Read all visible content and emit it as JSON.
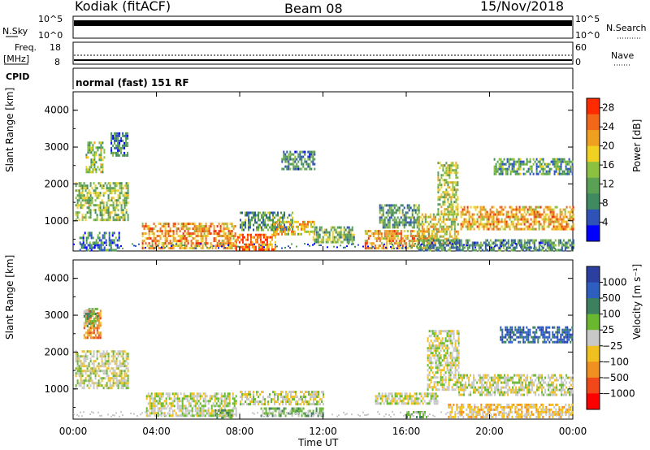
{
  "header": {
    "station": "Kodiak (fitACF)",
    "beam": "Beam 08",
    "date": "15/Nov/2018"
  },
  "top_panels": {
    "nsky_label": "N.Sky",
    "nsky_ticks": [
      "10^5",
      "10^0"
    ],
    "nsearch_label": "N.Search",
    "nsearch_ticks": [
      "10^5",
      "10^0"
    ],
    "freq_label_line1": "Freq.",
    "freq_label_line2": "[MHz]",
    "freq_ticks": [
      "18",
      "8"
    ],
    "nave_label": "Nave",
    "nave_ticks": [
      "60",
      "0"
    ],
    "cpid_label": "CPID",
    "cpid_value": "normal (fast) 151 RF"
  },
  "colors": {
    "power": [
      "#0000ff",
      "#2f52b8",
      "#3f8a5e",
      "#5aa055",
      "#8cc040",
      "#f0d020",
      "#f0a020",
      "#f06818",
      "#ff2a00"
    ],
    "velocity": [
      "#2a3fa0",
      "#2e5fc0",
      "#3c8060",
      "#6ab830",
      "#c8c8c8",
      "#f0c020",
      "#f09020",
      "#f04818",
      "#ff0000"
    ]
  },
  "chart_data": [
    {
      "type": "heatmap",
      "name": "power",
      "ylabel": "Slant Range [km]",
      "yticks": [
        "1000",
        "2000",
        "3000",
        "4000"
      ],
      "ylim": [
        180,
        4500
      ],
      "xlim": [
        0,
        24
      ],
      "colorbar_label": "Power [dB]",
      "colorbar_ticks": [
        "4",
        "8",
        "12",
        "16",
        "20",
        "24",
        "28"
      ],
      "colorbar_range": [
        0,
        30
      ],
      "regions": [
        {
          "t": [
            0.1,
            2.6
          ],
          "r": [
            1000,
            2050
          ],
          "v": 14
        },
        {
          "t": [
            0.6,
            1.5
          ],
          "r": [
            2300,
            3150
          ],
          "v": 14
        },
        {
          "t": [
            1.8,
            2.6
          ],
          "r": [
            2800,
            3400
          ],
          "v": 6
        },
        {
          "t": [
            0.3,
            2.2
          ],
          "r": [
            200,
            700
          ],
          "v": 8
        },
        {
          "t": [
            3.3,
            7.8
          ],
          "r": [
            250,
            950
          ],
          "v": 23
        },
        {
          "t": [
            7.8,
            9.7
          ],
          "r": [
            250,
            650
          ],
          "v": 26
        },
        {
          "t": [
            8.0,
            10.5
          ],
          "r": [
            750,
            1250
          ],
          "v": 10
        },
        {
          "t": [
            9.6,
            11.6
          ],
          "r": [
            650,
            1000
          ],
          "v": 20
        },
        {
          "t": [
            10.0,
            11.6
          ],
          "r": [
            2400,
            2900
          ],
          "v": 8
        },
        {
          "t": [
            11.5,
            13.5
          ],
          "r": [
            400,
            850
          ],
          "v": 12
        },
        {
          "t": [
            14.0,
            17.3
          ],
          "r": [
            250,
            750
          ],
          "v": 22
        },
        {
          "t": [
            14.7,
            16.6
          ],
          "r": [
            850,
            1450
          ],
          "v": 10
        },
        {
          "t": [
            16.5,
            18.5
          ],
          "r": [
            400,
            1200
          ],
          "v": 18
        },
        {
          "t": [
            17.5,
            18.5
          ],
          "r": [
            1200,
            2600
          ],
          "v": 16
        },
        {
          "t": [
            18.6,
            24.0
          ],
          "r": [
            800,
            1400
          ],
          "v": 22
        },
        {
          "t": [
            20.2,
            24.0
          ],
          "r": [
            2300,
            2700
          ],
          "v": 10
        },
        {
          "t": [
            16.5,
            24.0
          ],
          "r": [
            200,
            500
          ],
          "v": 9
        }
      ]
    },
    {
      "type": "heatmap",
      "name": "velocity",
      "ylabel": "Slant Range [km]",
      "yticks": [
        "1000",
        "2000",
        "3000",
        "4000"
      ],
      "ylim": [
        180,
        4500
      ],
      "xlim": [
        0,
        24
      ],
      "colorbar_label": "Velocity [m s⁻¹]",
      "colorbar_ticks": [
        "1000",
        "500",
        "100",
        "25",
        "−25",
        "−100",
        "−500",
        "−1000"
      ],
      "regions": [
        {
          "t": [
            0.1,
            2.6
          ],
          "r": [
            1000,
            2050
          ],
          "v": 4
        },
        {
          "t": [
            0.5,
            1.3
          ],
          "r": [
            2400,
            3150
          ],
          "v": 6
        },
        {
          "t": [
            0.5,
            1.2
          ],
          "r": [
            2700,
            3200
          ],
          "v": 3
        },
        {
          "t": [
            3.5,
            7.8
          ],
          "r": [
            300,
            900
          ],
          "v": 4
        },
        {
          "t": [
            6.8,
            7.6
          ],
          "r": [
            250,
            450
          ],
          "v": 3
        },
        {
          "t": [
            8.0,
            12.0
          ],
          "r": [
            600,
            950
          ],
          "v": 4
        },
        {
          "t": [
            9.0,
            12.0
          ],
          "r": [
            250,
            500
          ],
          "v": 3
        },
        {
          "t": [
            14.5,
            17.5
          ],
          "r": [
            600,
            900
          ],
          "v": 4
        },
        {
          "t": [
            16.0,
            17.0
          ],
          "r": [
            250,
            400
          ],
          "v": 3
        },
        {
          "t": [
            17.0,
            18.5
          ],
          "r": [
            1000,
            2600
          ],
          "v": 4
        },
        {
          "t": [
            18.5,
            24.0
          ],
          "r": [
            850,
            1400
          ],
          "v": 4
        },
        {
          "t": [
            20.5,
            24.0
          ],
          "r": [
            2300,
            2700
          ],
          "v": 1
        },
        {
          "t": [
            18.0,
            24.0
          ],
          "r": [
            250,
            600
          ],
          "v": 5
        }
      ]
    }
  ],
  "xaxis": {
    "label": "Time UT",
    "ticks": [
      "00:00",
      "04:00",
      "08:00",
      "12:00",
      "16:00",
      "20:00",
      "00:00"
    ]
  }
}
